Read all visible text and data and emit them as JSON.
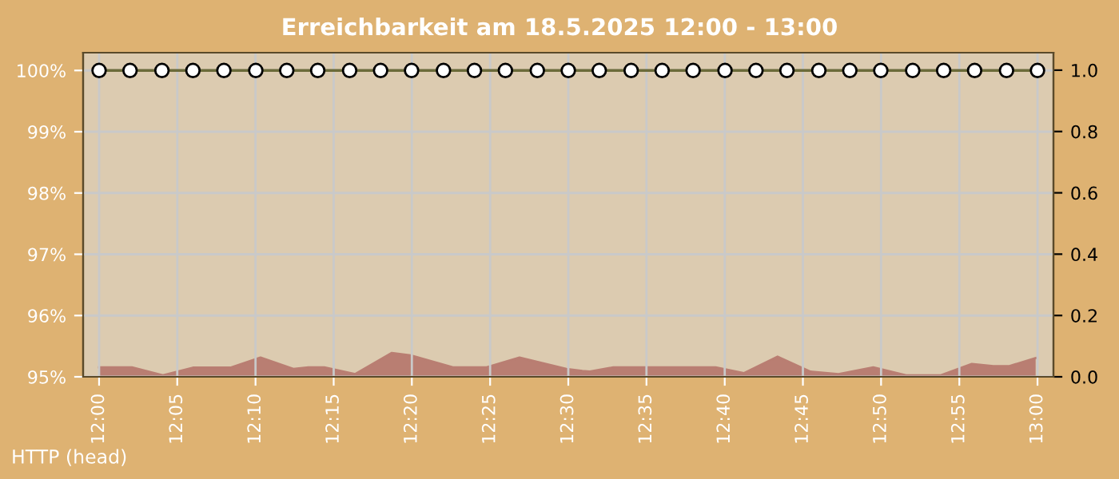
{
  "chart_data": {
    "type": "line",
    "title": "Erreichbarkeit am 18.5.2025 12:00 - 13:00",
    "annotations": [
      "HTTP (head)"
    ],
    "xlim": [
      11.983,
      13.017
    ],
    "xticks": [
      {
        "value": 12,
        "label": "12:00"
      },
      {
        "value": 12.0833,
        "label": "12:05"
      },
      {
        "value": 12.1667,
        "label": "12:10"
      },
      {
        "value": 12.25,
        "label": "12:15"
      },
      {
        "value": 12.3333,
        "label": "12:20"
      },
      {
        "value": 12.4167,
        "label": "12:25"
      },
      {
        "value": 12.5,
        "label": "12:30"
      },
      {
        "value": 12.5833,
        "label": "12:35"
      },
      {
        "value": 12.6667,
        "label": "12:40"
      },
      {
        "value": 12.75,
        "label": "12:45"
      },
      {
        "value": 12.8333,
        "label": "12:50"
      },
      {
        "value": 12.9167,
        "label": "12:55"
      },
      {
        "value": 13,
        "label": "13:00"
      }
    ],
    "ylim": [
      95,
      100.29
    ],
    "yticks": [
      {
        "value": 95,
        "label": "95%"
      },
      {
        "value": 96,
        "label": "96%"
      },
      {
        "value": 97,
        "label": "97%"
      },
      {
        "value": 98,
        "label": "98%"
      },
      {
        "value": 99,
        "label": "99%"
      },
      {
        "value": 100,
        "label": "100%"
      }
    ],
    "y2lim": [
      0,
      1.057
    ],
    "y2ticks": [
      {
        "value": 0,
        "label": "0.0"
      },
      {
        "value": 0.2,
        "label": "0.2"
      },
      {
        "value": 0.4,
        "label": "0.4"
      },
      {
        "value": 0.6,
        "label": "0.6"
      },
      {
        "value": 0.8,
        "label": "0.8"
      },
      {
        "value": 1,
        "label": "1.0"
      }
    ],
    "grid": true,
    "series": [
      {
        "type": "area",
        "axis": "y2",
        "color": "#b97e72",
        "x": [
          12,
          12.035,
          12.068,
          12.1,
          12.14,
          12.172,
          12.207,
          12.223,
          12.24,
          12.273,
          12.312,
          12.332,
          12.377,
          12.413,
          12.448,
          12.498,
          12.515,
          12.523,
          12.548,
          12.657,
          12.687,
          12.723,
          12.758,
          12.788,
          12.825,
          12.86,
          12.897,
          12.93,
          12.953,
          12.97,
          12.998
        ],
        "values": [
          0.031,
          0.031,
          0.005,
          0.03,
          0.03,
          0.063,
          0.026,
          0.031,
          0.031,
          0.009,
          0.078,
          0.07,
          0.031,
          0.031,
          0.063,
          0.026,
          0.019,
          0.017,
          0.031,
          0.031,
          0.012,
          0.066,
          0.017,
          0.009,
          0.031,
          0.005,
          0.005,
          0.042,
          0.035,
          0.035,
          0.061
        ]
      },
      {
        "axis": "y",
        "color": "#6b6b3a",
        "marker": "circle",
        "x": [
          12,
          12.033,
          12.067,
          12.1,
          12.133,
          12.167,
          12.2,
          12.233,
          12.267,
          12.3,
          12.333,
          12.367,
          12.4,
          12.433,
          12.467,
          12.5,
          12.533,
          12.567,
          12.6,
          12.633,
          12.667,
          12.7,
          12.733,
          12.767,
          12.8,
          12.833,
          12.867,
          12.9,
          12.933,
          12.967,
          13
        ],
        "values": [
          100,
          100,
          100,
          100,
          100,
          100,
          100,
          100,
          100,
          100,
          100,
          100,
          100,
          100,
          100,
          100,
          100,
          100,
          100,
          100,
          100,
          100,
          100,
          100,
          100,
          100,
          100,
          100,
          100,
          100,
          100
        ]
      }
    ]
  }
}
